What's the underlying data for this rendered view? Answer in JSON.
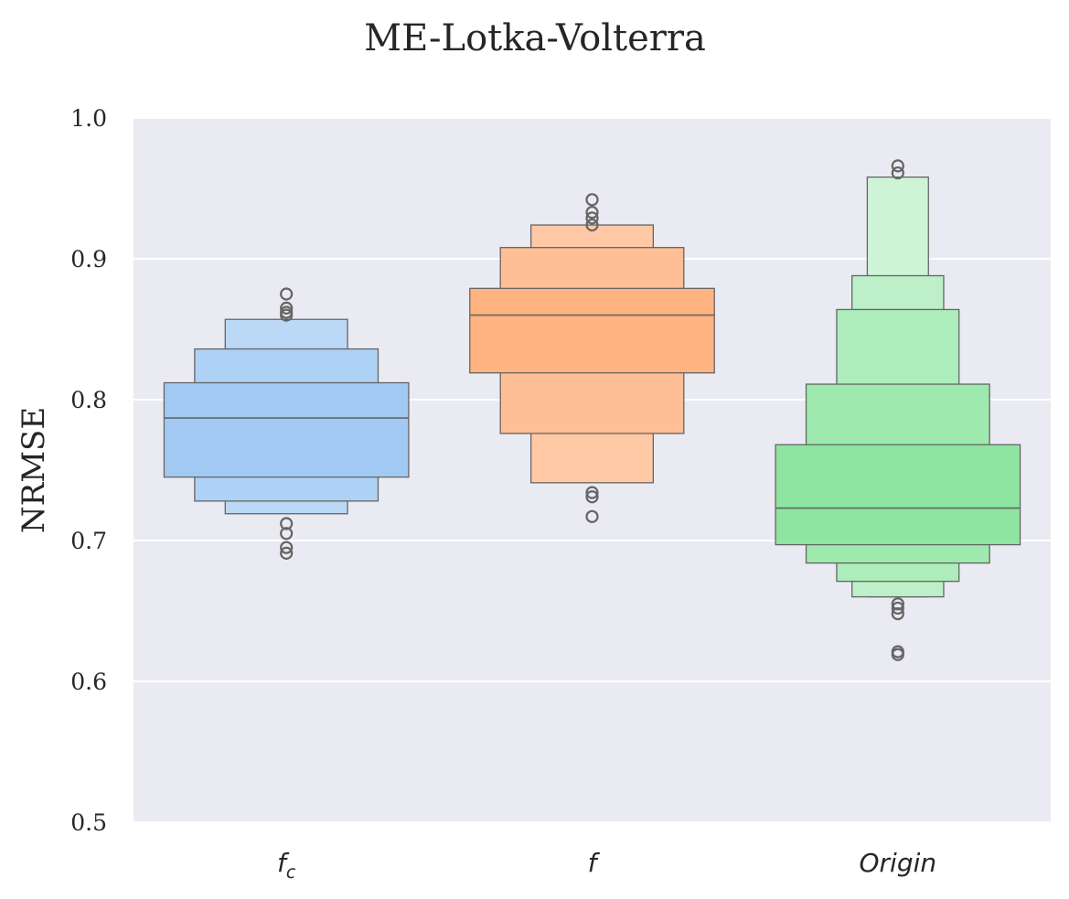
{
  "chart_data": {
    "type": "boxen",
    "title": "ME-Lotka-Volterra",
    "xlabel": "",
    "ylabel": "NRMSE",
    "ylim": [
      0.5,
      1.0
    ],
    "yticks": [
      "0.5",
      "0.6",
      "0.7",
      "0.8",
      "0.9",
      "1.0"
    ],
    "grid": true,
    "categories": [
      {
        "base": "f",
        "sub": "c"
      },
      {
        "base": "f",
        "sub": ""
      },
      {
        "base": "Origin",
        "sub": ""
      }
    ],
    "series": [
      {
        "name": "f_c",
        "color": "#a1c9f4",
        "median": 0.787,
        "levels": [
          [
            0.745,
            0.812
          ],
          [
            0.728,
            0.836
          ],
          [
            0.719,
            0.857
          ]
        ],
        "outliers": [
          0.875,
          0.865,
          0.862,
          0.86,
          0.712,
          0.705,
          0.695,
          0.691
        ]
      },
      {
        "name": "f",
        "color": "#ffb482",
        "median": 0.86,
        "levels": [
          [
            0.819,
            0.879
          ],
          [
            0.776,
            0.908
          ],
          [
            0.741,
            0.924
          ]
        ],
        "outliers": [
          0.942,
          0.933,
          0.929,
          0.924,
          0.734,
          0.731,
          0.717
        ]
      },
      {
        "name": "Origin",
        "color": "#8de5a1",
        "median": 0.723,
        "levels": [
          [
            0.697,
            0.768
          ],
          [
            0.684,
            0.811
          ],
          [
            0.671,
            0.864
          ],
          [
            0.66,
            0.888
          ],
          [
            0.66,
            0.958
          ]
        ],
        "outliers": [
          0.966,
          0.961,
          0.655,
          0.652,
          0.648,
          0.621,
          0.619
        ]
      }
    ]
  }
}
